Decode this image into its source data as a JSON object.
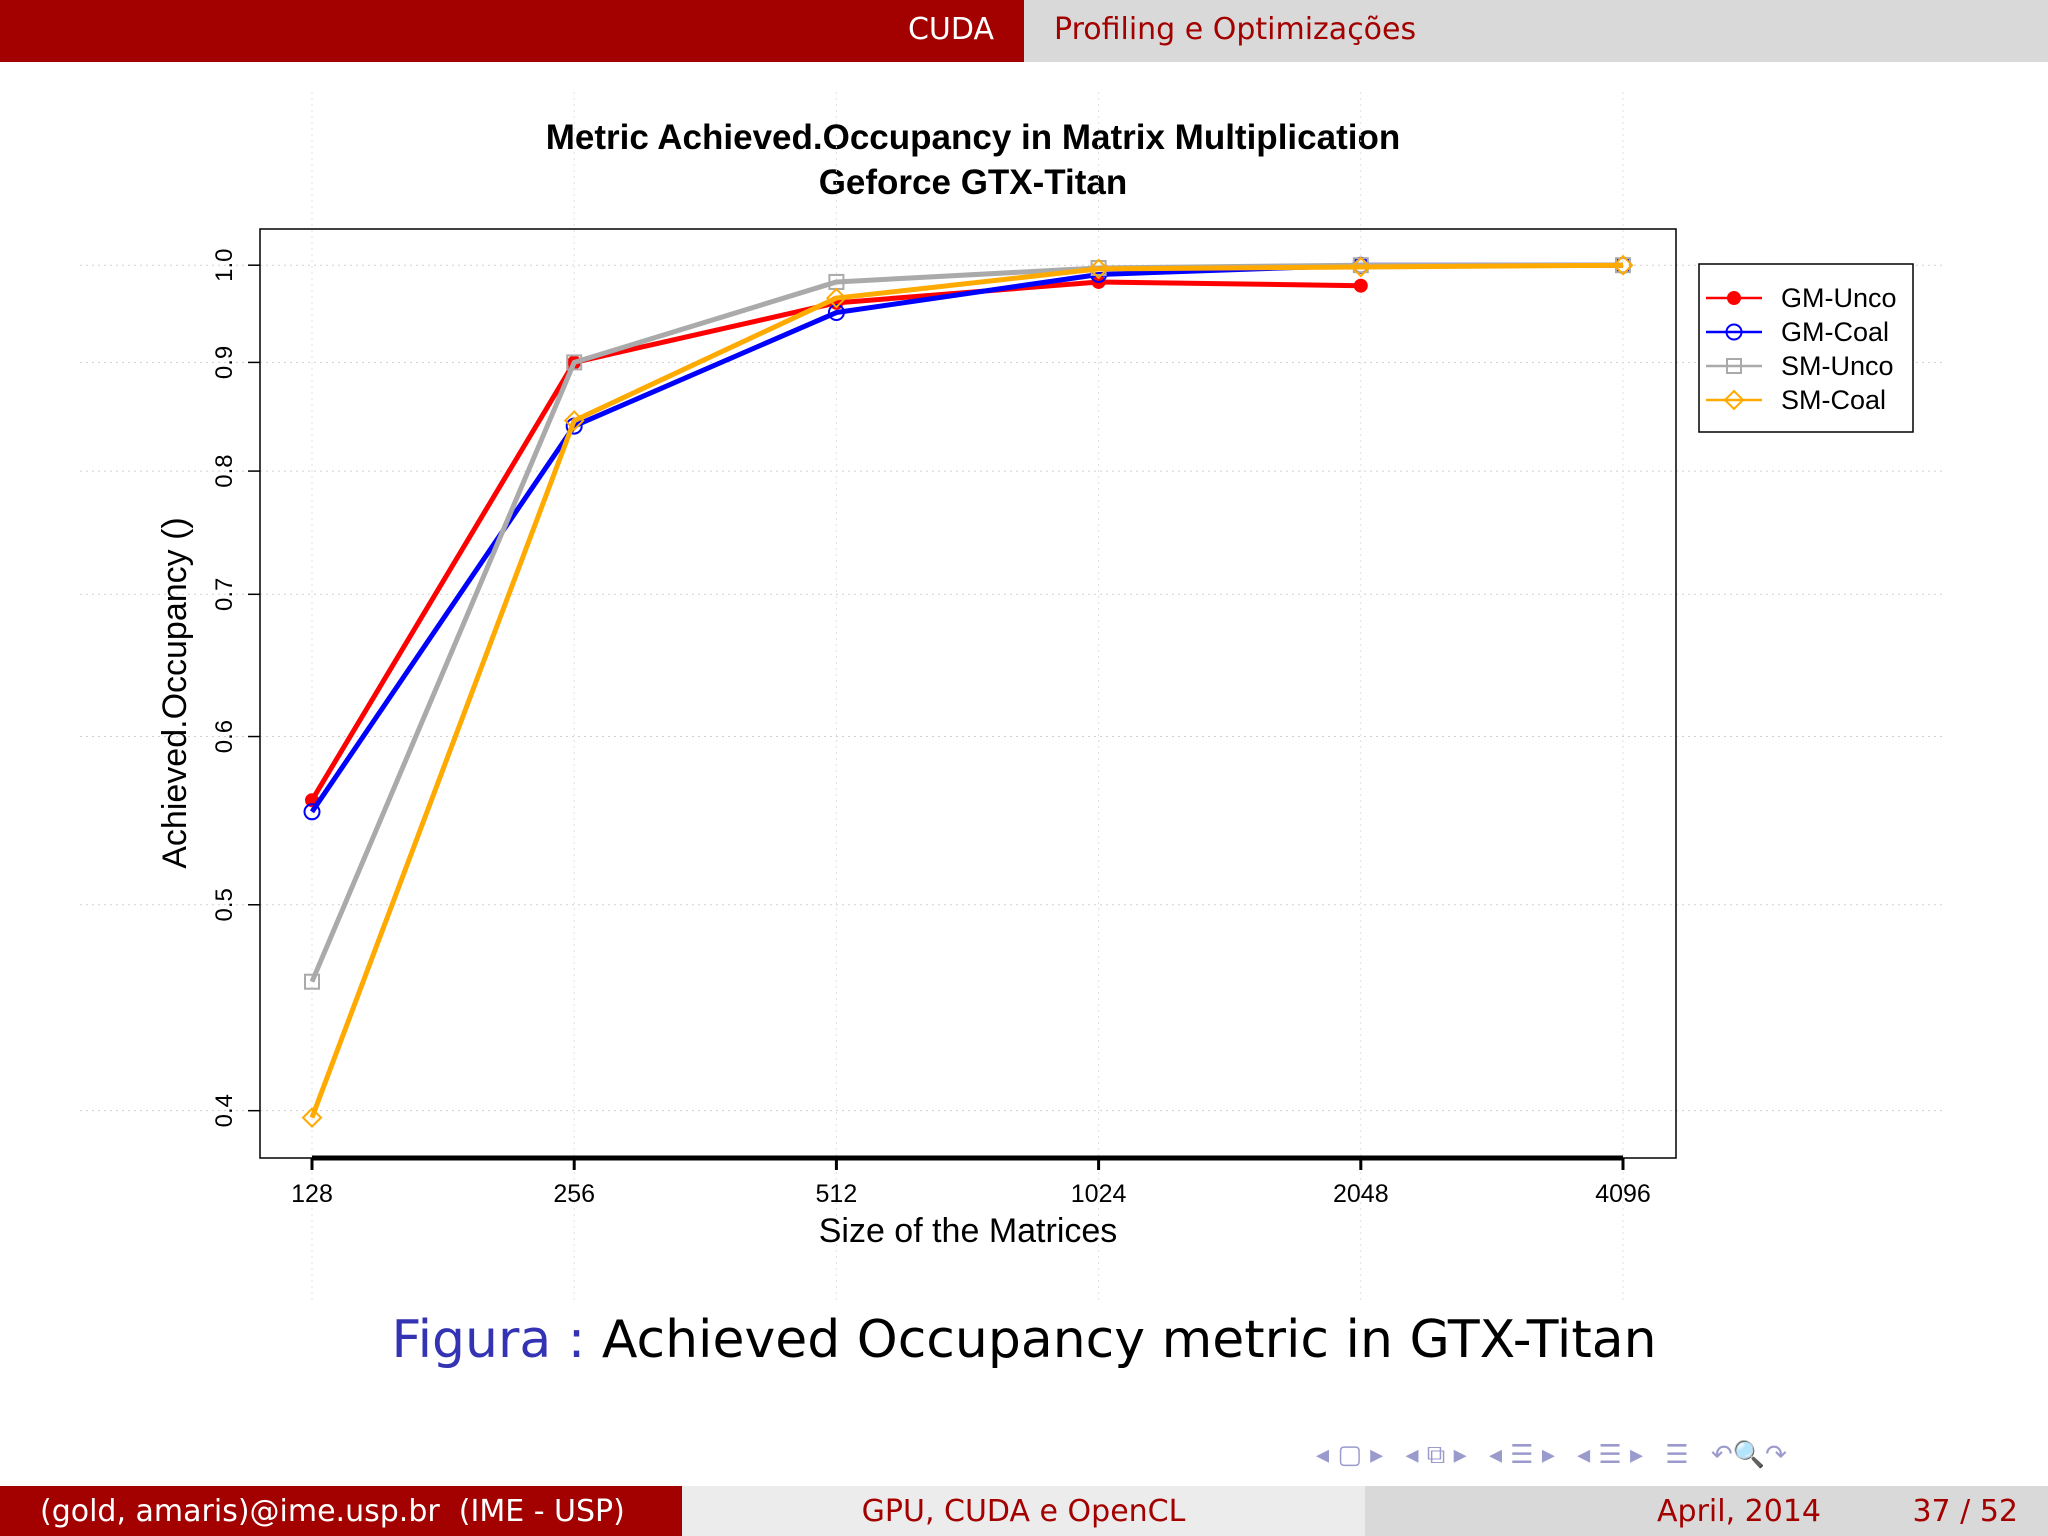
{
  "header": {
    "section": "CUDA",
    "subsection": "Profiling e Optimizações"
  },
  "caption": {
    "label": "Figura :",
    "text": "Achieved Occupancy metric in GTX-Titan"
  },
  "footer": {
    "authors": "(gold, amaris)@ime.usp.br  (IME - USP)",
    "title": "GPU, CUDA e OpenCL",
    "date": "April, 2014",
    "page": "37 / 52"
  },
  "nav_icons": [
    "nav-prev-frame-icon",
    "nav-next-frame-icon",
    "nav-subsection-icon",
    "nav-section-icon",
    "nav-align-icon",
    "nav-search-icon"
  ],
  "chart_data": {
    "type": "line",
    "title": "Metric Achieved.Occupancy in Matrix Multiplication",
    "subtitle": "Geforce GTX-Titan",
    "xlabel": "Size of the Matrices",
    "ylabel": "Achieved.Occupancy ()",
    "y_scale": "log",
    "ylim": [
      0.38,
      1.04
    ],
    "yticks": [
      0.4,
      0.5,
      0.6,
      0.7,
      0.8,
      0.9,
      1.0
    ],
    "ytick_labels": [
      "0.4",
      "0.5",
      "0.6",
      "0.7",
      "0.8",
      "0.9",
      "1.0"
    ],
    "categories": [
      "128",
      "256",
      "512",
      "1024",
      "2048",
      "4096"
    ],
    "grid": true,
    "legend_position": "top-right",
    "series": [
      {
        "name": "GM-Unco",
        "color": "#ff0000",
        "marker": "filled-circle",
        "values": [
          0.56,
          0.9,
          0.96,
          0.982,
          0.978,
          null
        ]
      },
      {
        "name": "GM-Coal",
        "color": "#0000ff",
        "marker": "open-circle",
        "values": [
          0.553,
          0.84,
          0.95,
          0.99,
          1.0,
          1.0
        ]
      },
      {
        "name": "SM-Unco",
        "color": "#aaaaaa",
        "marker": "open-square",
        "values": [
          0.46,
          0.9,
          0.982,
          0.997,
          1.0,
          1.0
        ]
      },
      {
        "name": "SM-Coal",
        "color": "#ffaa00",
        "marker": "open-diamond",
        "values": [
          0.397,
          0.845,
          0.965,
          0.996,
          0.998,
          1.0
        ]
      }
    ]
  }
}
